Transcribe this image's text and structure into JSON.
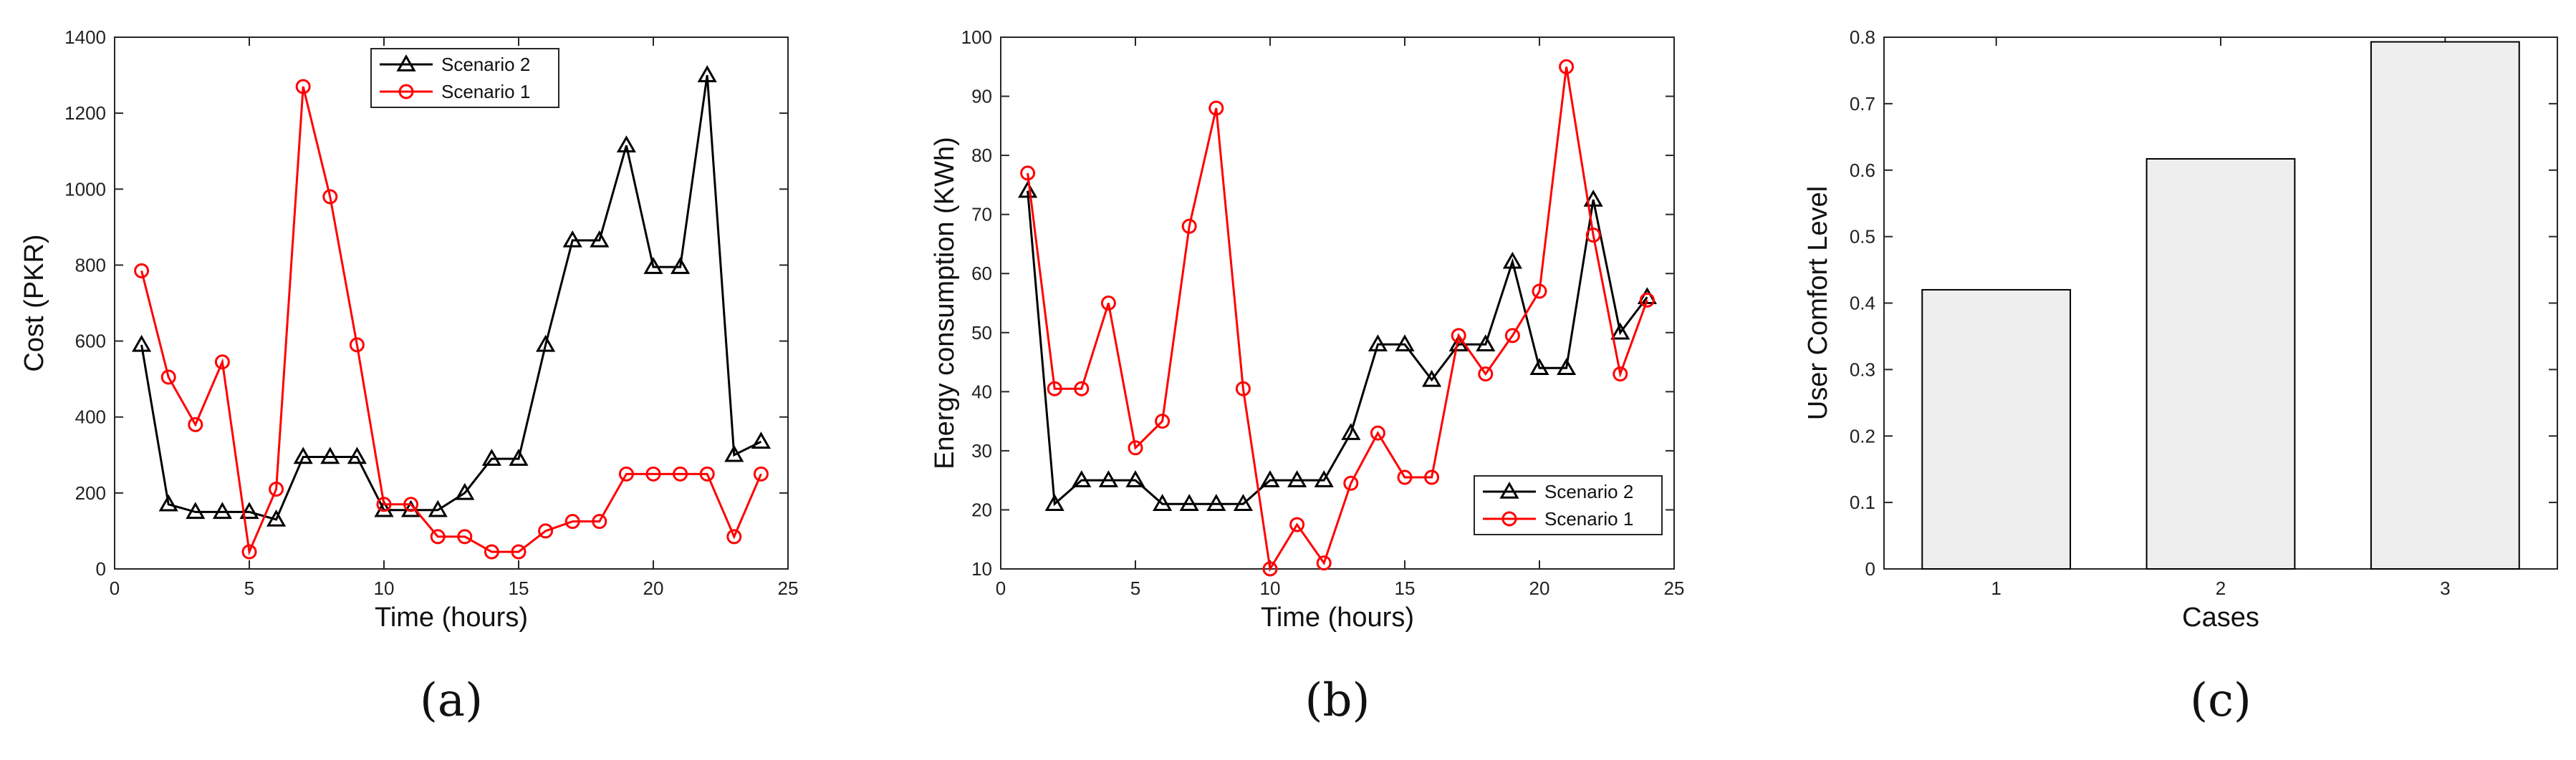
{
  "chart_data": [
    {
      "id": "a",
      "type": "line",
      "panel_label": "(a)",
      "xlabel": "Time (hours)",
      "ylabel": "Cost (PKR)",
      "xlim": [
        0,
        25
      ],
      "ylim": [
        0,
        1400
      ],
      "xticks": [
        0,
        5,
        10,
        15,
        20,
        25
      ],
      "yticks": [
        0,
        200,
        400,
        600,
        800,
        1000,
        1200,
        1400
      ],
      "legend_position": "top-center",
      "x": [
        1,
        2,
        3,
        4,
        5,
        6,
        7,
        8,
        9,
        10,
        11,
        12,
        13,
        14,
        15,
        16,
        17,
        18,
        19,
        20,
        21,
        22,
        23,
        24
      ],
      "series": [
        {
          "name": "Scenario 2",
          "color": "#000000",
          "marker": "triangle",
          "values": [
            590,
            170,
            150,
            150,
            150,
            130,
            295,
            295,
            295,
            155,
            155,
            155,
            200,
            290,
            290,
            590,
            865,
            865,
            1115,
            795,
            795,
            1300,
            300,
            335
          ]
        },
        {
          "name": "Scenario 1",
          "color": "#ff0000",
          "marker": "circle",
          "values": [
            785,
            505,
            380,
            545,
            45,
            210,
            1270,
            980,
            590,
            170,
            170,
            85,
            85,
            45,
            45,
            100,
            125,
            125,
            250,
            250,
            250,
            250,
            85,
            250
          ]
        }
      ]
    },
    {
      "id": "b",
      "type": "line",
      "panel_label": "(b)",
      "xlabel": "Time (hours)",
      "ylabel": "Energy consumption (KWh)",
      "xlim": [
        0,
        25
      ],
      "ylim": [
        10,
        100
      ],
      "xticks": [
        0,
        5,
        10,
        15,
        20,
        25
      ],
      "yticks": [
        10,
        20,
        30,
        40,
        50,
        60,
        70,
        80,
        90,
        100
      ],
      "legend_position": "bottom-right",
      "x": [
        1,
        2,
        3,
        4,
        5,
        6,
        7,
        8,
        9,
        10,
        11,
        12,
        13,
        14,
        15,
        16,
        17,
        18,
        19,
        20,
        21,
        22,
        23,
        24
      ],
      "series": [
        {
          "name": "Scenario 2",
          "color": "#000000",
          "marker": "triangle",
          "values": [
            74,
            21,
            25,
            25,
            25,
            21,
            21,
            21,
            21,
            25,
            25,
            25,
            33,
            48,
            48,
            42,
            48,
            48,
            62,
            44,
            44,
            72.5,
            50,
            56
          ]
        },
        {
          "name": "Scenario 1",
          "color": "#ff0000",
          "marker": "circle",
          "values": [
            77,
            40.5,
            40.5,
            55,
            30.5,
            35,
            68,
            88,
            40.5,
            10,
            17.5,
            11,
            24.5,
            33,
            25.5,
            25.5,
            49.5,
            43,
            49.5,
            57,
            95,
            66.5,
            43,
            55.5
          ]
        }
      ]
    },
    {
      "id": "c",
      "type": "bar",
      "panel_label": "(c)",
      "xlabel": "Cases",
      "ylabel": "User Comfort Level",
      "categories": [
        "1",
        "2",
        "3"
      ],
      "values": [
        0.42,
        0.617,
        0.793
      ],
      "ylim": [
        0,
        0.8
      ],
      "yticks": [
        0,
        0.1,
        0.2,
        0.3,
        0.4,
        0.5,
        0.6,
        0.7,
        0.8
      ],
      "bar_color": "#eeeeee",
      "edge_color": "#000000"
    }
  ]
}
